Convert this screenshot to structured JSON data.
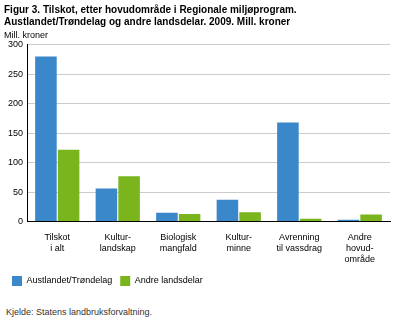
{
  "chart_data": {
    "type": "bar",
    "title": [
      "Figur 3. Tilskot, etter hovudområde i Regionale miljøprogram.",
      "Austlandet/Trøndelag og andre landsdelar. 2009. Mill. kroner"
    ],
    "ylabel": "Mill. kroner",
    "source": "Kjelde: Statens landbruksforvaltning.",
    "categories": [
      "Tilskot\ni alt",
      "Kultur-\nlandskap",
      "Biologisk\nmangfald",
      "Kultur-\nminne",
      "Avrenning\ntil vassdrag",
      "Andre\nhovud-\nområde"
    ],
    "series": [
      {
        "name": "Austlandet/Trøndelag",
        "color": "#3a87c9",
        "values": [
          280,
          56,
          15,
          37,
          168,
          3
        ]
      },
      {
        "name": "Andre landsdelar",
        "color": "#7ab51d",
        "values": [
          122,
          77,
          13,
          16,
          5,
          12
        ]
      }
    ],
    "ylim": [
      0,
      300
    ],
    "yticks": [
      0,
      50,
      100,
      150,
      200,
      250,
      300
    ],
    "grid": true,
    "legend": "bottom"
  }
}
